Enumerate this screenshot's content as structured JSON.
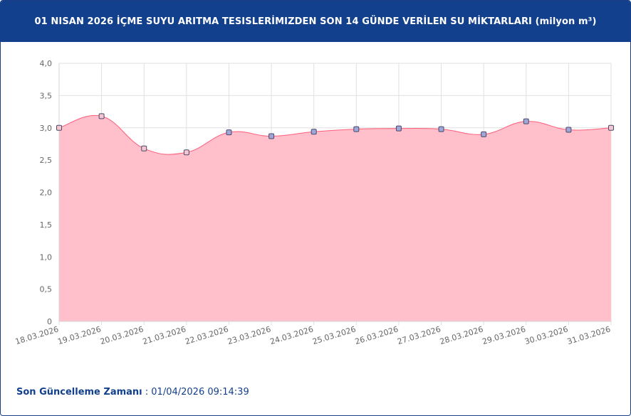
{
  "header": {
    "title": "01 NISAN 2026 İÇME SUYU ARITMA TESISLERİMIZDEN SON 14 GÜNDE VERİLEN SU MİKTARLARI (milyon m³)"
  },
  "footer": {
    "label": "Son Güncelleme Zamanı",
    "separator": " : ",
    "value": "01/04/2026 09:14:39"
  },
  "colors": {
    "header_bg": "#13408c",
    "area_fill": "#ffc0cc",
    "line": "#ff5c7a",
    "grid": "#e0e0e0"
  },
  "chart_data": {
    "type": "area",
    "title": "01 NISAN 2026 İÇME SUYU ARITMA TESISLERİMIZDEN SON 14 GÜNDE VERİLEN SU MİKTARLARI (milyon m³)",
    "categories": [
      "18.03.2026",
      "19.03.2026",
      "20.03.2026",
      "21.03.2026",
      "22.03.2026",
      "23.03.2026",
      "24.03.2026",
      "25.03.2026",
      "26.03.2026",
      "27.03.2026",
      "28.03.2026",
      "29.03.2026",
      "30.03.2026",
      "31.03.2026"
    ],
    "series": [
      {
        "values": [
          3.0,
          3.18,
          2.68,
          2.62,
          2.93,
          2.87,
          2.94,
          2.98,
          2.99,
          2.98,
          2.9,
          3.1,
          2.97,
          3.0
        ]
      }
    ],
    "ylim": [
      0,
      4
    ],
    "yticks": [
      "0",
      "0,5",
      "1,0",
      "1,5",
      "2,0",
      "2,5",
      "3,0",
      "3,5",
      "4,0"
    ],
    "ytick_values": [
      0,
      0.5,
      1.0,
      1.5,
      2.0,
      2.5,
      3.0,
      3.5,
      4.0
    ],
    "grid": true,
    "legend": "none"
  }
}
